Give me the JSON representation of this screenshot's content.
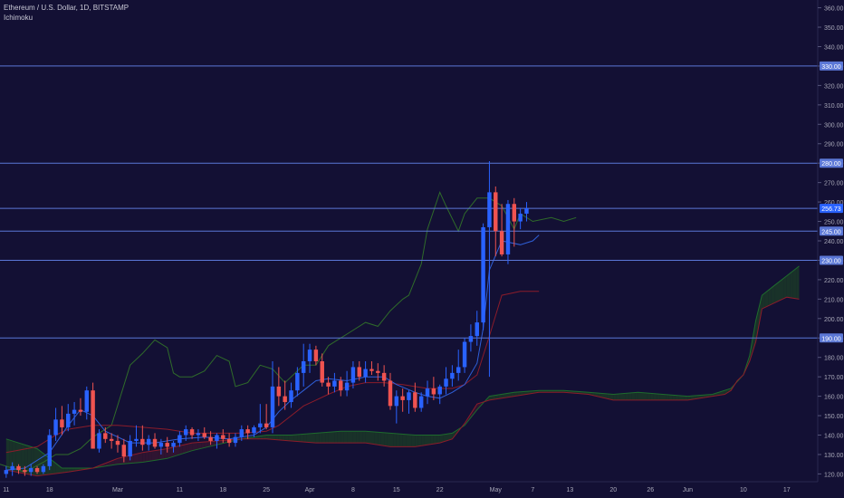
{
  "header": {
    "symbol_title": "Ethereum / U.S. Dollar, 1D, BITSTAMP",
    "indicator": "Ichimoku"
  },
  "colors": {
    "background": "#131034",
    "up_candle": "#2962ff",
    "down_candle": "#ef5350",
    "hline": "#5b77d6",
    "tenkan": "#2f5fd8",
    "kijun": "#8b1c2a",
    "lagging": "#2f6b2a",
    "cloud_bull": "#1c3d25",
    "cloud_bear": "#3a1530",
    "span_a": "#1e6b2d",
    "span_b": "#8b1c2a",
    "axis_text": "#a8a8b8",
    "price_badge": "#2962ff"
  },
  "chart_data": {
    "type": "candlestick",
    "y_axis": {
      "ticks": [
        120,
        130,
        140,
        150,
        160,
        170,
        180,
        190,
        200,
        210,
        220,
        230,
        240,
        250,
        260,
        270,
        280,
        290,
        300,
        310,
        320,
        330,
        340,
        350,
        360
      ],
      "tick_labels": [
        "120.00",
        "130.00",
        "140.00",
        "150.00",
        "160.00",
        "170.00",
        "180.00",
        "190.00",
        "200.00",
        "210.00",
        "220.00",
        "230.00",
        "240.00",
        "250.00",
        "260.00",
        "270.00",
        "280.00",
        "290.00",
        "300.00",
        "310.00",
        "320.00",
        "330.00",
        "340.00",
        "350.00",
        "360.00"
      ],
      "range": [
        116,
        364
      ]
    },
    "x_axis": {
      "labels": [
        {
          "text": "11",
          "day": 0
        },
        {
          "text": "18",
          "day": 7
        },
        {
          "text": "Mar",
          "day": 18
        },
        {
          "text": "11",
          "day": 28
        },
        {
          "text": "18",
          "day": 35
        },
        {
          "text": "25",
          "day": 42
        },
        {
          "text": "Apr",
          "day": 49
        },
        {
          "text": "8",
          "day": 56
        },
        {
          "text": "15",
          "day": 63
        },
        {
          "text": "22",
          "day": 70
        },
        {
          "text": "May",
          "day": 79
        },
        {
          "text": "7",
          "day": 85
        },
        {
          "text": "13",
          "day": 91
        },
        {
          "text": "20",
          "day": 98
        },
        {
          "text": "26",
          "day": 104
        },
        {
          "text": "Jun",
          "day": 110
        },
        {
          "text": "10",
          "day": 119
        },
        {
          "text": "17",
          "day": 126
        }
      ],
      "day_range": [
        -1,
        131
      ]
    },
    "horizontal_lines": [
      {
        "price": 330,
        "label": "330.00"
      },
      {
        "price": 280,
        "label": "280.00"
      },
      {
        "price": 256.73,
        "label": "256.73"
      },
      {
        "price": 245,
        "label": "245.00"
      },
      {
        "price": 230,
        "label": "230.00"
      },
      {
        "price": 190,
        "label": "190.00"
      }
    ],
    "current_price": {
      "price": 256.73,
      "label": "256.73"
    },
    "candles": [
      [
        120,
        124,
        118,
        122
      ],
      [
        122,
        126,
        119,
        124
      ],
      [
        124,
        125,
        120,
        122
      ],
      [
        122,
        124,
        119,
        121
      ],
      [
        121,
        125,
        119,
        123
      ],
      [
        123,
        124,
        120,
        121
      ],
      [
        121,
        125,
        120,
        124
      ],
      [
        124,
        143,
        122,
        140
      ],
      [
        140,
        154,
        137,
        148
      ],
      [
        148,
        155,
        140,
        144
      ],
      [
        144,
        156,
        142,
        151
      ],
      [
        151,
        157,
        145,
        153
      ],
      [
        153,
        159,
        150,
        152
      ],
      [
        152,
        165,
        148,
        163
      ],
      [
        163,
        167,
        133,
        133
      ],
      [
        133,
        143,
        131,
        141
      ],
      [
        141,
        144,
        136,
        138
      ],
      [
        138,
        141,
        133,
        137
      ],
      [
        137,
        140,
        131,
        135
      ],
      [
        135,
        138,
        126,
        129
      ],
      [
        129,
        140,
        127,
        137
      ],
      [
        137,
        145,
        134,
        138
      ],
      [
        138,
        145,
        132,
        135
      ],
      [
        135,
        140,
        132,
        138
      ],
      [
        138,
        141,
        133,
        134
      ],
      [
        134,
        138,
        130,
        136
      ],
      [
        136,
        139,
        131,
        134
      ],
      [
        134,
        137,
        131,
        136
      ],
      [
        136,
        142,
        134,
        140
      ],
      [
        140,
        145,
        137,
        143
      ],
      [
        143,
        144,
        138,
        140
      ],
      [
        140,
        143,
        137,
        141
      ],
      [
        141,
        144,
        138,
        139
      ],
      [
        139,
        142,
        135,
        137
      ],
      [
        137,
        141,
        133,
        140
      ],
      [
        140,
        143,
        136,
        138
      ],
      [
        138,
        141,
        134,
        136
      ],
      [
        136,
        141,
        134,
        139
      ],
      [
        139,
        145,
        137,
        143
      ],
      [
        143,
        145,
        138,
        141
      ],
      [
        141,
        145,
        139,
        144
      ],
      [
        144,
        156,
        141,
        146
      ],
      [
        146,
        156,
        143,
        144
      ],
      [
        144,
        178,
        141,
        165
      ],
      [
        165,
        175,
        155,
        160
      ],
      [
        160,
        168,
        153,
        157
      ],
      [
        157,
        167,
        154,
        163
      ],
      [
        163,
        175,
        160,
        172
      ],
      [
        172,
        187,
        165,
        178
      ],
      [
        178,
        187,
        172,
        184
      ],
      [
        184,
        186,
        176,
        178
      ],
      [
        178,
        182,
        165,
        167
      ],
      [
        167,
        170,
        161,
        165
      ],
      [
        165,
        172,
        162,
        168
      ],
      [
        168,
        170,
        160,
        163
      ],
      [
        163,
        173,
        160,
        167
      ],
      [
        167,
        178,
        164,
        175
      ],
      [
        175,
        178,
        168,
        170
      ],
      [
        170,
        178,
        167,
        174
      ],
      [
        174,
        178,
        171,
        173
      ],
      [
        173,
        177,
        168,
        172
      ],
      [
        172,
        176,
        165,
        168
      ],
      [
        168,
        172,
        153,
        155
      ],
      [
        155,
        163,
        146,
        160
      ],
      [
        160,
        164,
        152,
        158
      ],
      [
        158,
        163,
        151,
        162
      ],
      [
        162,
        167,
        152,
        154
      ],
      [
        154,
        162,
        152,
        160
      ],
      [
        160,
        168,
        156,
        164
      ],
      [
        164,
        170,
        158,
        161
      ],
      [
        161,
        166,
        156,
        165
      ],
      [
        165,
        175,
        161,
        169
      ],
      [
        169,
        176,
        165,
        172
      ],
      [
        172,
        184,
        168,
        175
      ],
      [
        175,
        190,
        172,
        188
      ],
      [
        188,
        197,
        183,
        191
      ],
      [
        191,
        204,
        186,
        198
      ],
      [
        198,
        249,
        194,
        247
      ],
      [
        247,
        281,
        170,
        265
      ],
      [
        265,
        268,
        232,
        245
      ],
      [
        245,
        259,
        232,
        233
      ],
      [
        233,
        261,
        228,
        259
      ],
      [
        259,
        262,
        237,
        250
      ],
      [
        250,
        257,
        246,
        254
      ],
      [
        254,
        260,
        250,
        256.73
      ]
    ],
    "tenkan": [
      [
        0,
        122
      ],
      [
        3,
        123
      ],
      [
        7,
        131
      ],
      [
        10,
        145
      ],
      [
        12,
        153
      ],
      [
        14,
        150
      ],
      [
        16,
        142
      ],
      [
        20,
        136
      ],
      [
        24,
        136
      ],
      [
        28,
        138
      ],
      [
        32,
        139
      ],
      [
        36,
        138
      ],
      [
        40,
        140
      ],
      [
        42,
        144
      ],
      [
        44,
        152
      ],
      [
        46,
        158
      ],
      [
        48,
        163
      ],
      [
        50,
        168
      ],
      [
        52,
        169
      ],
      [
        55,
        168
      ],
      [
        58,
        170
      ],
      [
        61,
        170
      ],
      [
        63,
        166
      ],
      [
        66,
        162
      ],
      [
        68,
        160
      ],
      [
        70,
        159
      ],
      [
        72,
        162
      ],
      [
        74,
        166
      ],
      [
        76,
        177
      ],
      [
        77,
        195
      ],
      [
        78,
        225
      ],
      [
        80,
        240
      ],
      [
        83,
        238
      ],
      [
        85,
        240
      ],
      [
        86,
        243
      ]
    ],
    "kijun": [
      [
        0,
        131
      ],
      [
        5,
        134
      ],
      [
        8,
        140
      ],
      [
        10,
        143
      ],
      [
        14,
        145
      ],
      [
        18,
        145
      ],
      [
        22,
        144
      ],
      [
        26,
        143
      ],
      [
        30,
        141
      ],
      [
        34,
        141
      ],
      [
        38,
        141
      ],
      [
        42,
        142
      ],
      [
        44,
        145
      ],
      [
        46,
        150
      ],
      [
        48,
        155
      ],
      [
        50,
        158
      ],
      [
        52,
        161
      ],
      [
        55,
        165
      ],
      [
        58,
        167
      ],
      [
        61,
        167
      ],
      [
        64,
        166
      ],
      [
        66,
        165
      ],
      [
        68,
        164
      ],
      [
        70,
        164
      ],
      [
        72,
        164
      ],
      [
        74,
        166
      ],
      [
        76,
        171
      ],
      [
        78,
        191
      ],
      [
        80,
        212
      ],
      [
        83,
        214
      ],
      [
        86,
        214
      ]
    ],
    "lagging": [
      [
        -1,
        125
      ],
      [
        3,
        121
      ],
      [
        6,
        126
      ],
      [
        8,
        130
      ],
      [
        10,
        130
      ],
      [
        12,
        133
      ],
      [
        14,
        139
      ],
      [
        17,
        145
      ],
      [
        20,
        176
      ],
      [
        22,
        182
      ],
      [
        24,
        189
      ],
      [
        26,
        185
      ],
      [
        27,
        172
      ],
      [
        28,
        170
      ],
      [
        30,
        170
      ],
      [
        32,
        173
      ],
      [
        34,
        181
      ],
      [
        36,
        178
      ],
      [
        37,
        165
      ],
      [
        39,
        167
      ],
      [
        41,
        176
      ],
      [
        43,
        174
      ],
      [
        45,
        167
      ],
      [
        48,
        176
      ],
      [
        50,
        176
      ],
      [
        52,
        186
      ],
      [
        55,
        192
      ],
      [
        58,
        198
      ],
      [
        60,
        196
      ],
      [
        62,
        204
      ],
      [
        64,
        210
      ],
      [
        65,
        212
      ],
      [
        67,
        228
      ],
      [
        68,
        246
      ],
      [
        70,
        265
      ],
      [
        71,
        258
      ],
      [
        73,
        245
      ],
      [
        74,
        254
      ],
      [
        76,
        262
      ],
      [
        78,
        262
      ],
      [
        80,
        258
      ],
      [
        82,
        246
      ],
      [
        83,
        254
      ],
      [
        85,
        250
      ],
      [
        88,
        252
      ],
      [
        90,
        250
      ],
      [
        92,
        252
      ]
    ],
    "span_a": [
      [
        0,
        138
      ],
      [
        5,
        133
      ],
      [
        9,
        123
      ],
      [
        14,
        123
      ],
      [
        18,
        125
      ],
      [
        22,
        126
      ],
      [
        26,
        128
      ],
      [
        30,
        132
      ],
      [
        34,
        135
      ],
      [
        38,
        138
      ],
      [
        42,
        140
      ],
      [
        46,
        140
      ],
      [
        50,
        141
      ],
      [
        54,
        142
      ],
      [
        58,
        142
      ],
      [
        62,
        141
      ],
      [
        66,
        140
      ],
      [
        70,
        140
      ],
      [
        72,
        141
      ],
      [
        74,
        145
      ],
      [
        76,
        153
      ],
      [
        78,
        160
      ],
      [
        82,
        162
      ],
      [
        86,
        163
      ],
      [
        90,
        163
      ],
      [
        94,
        162
      ],
      [
        98,
        161
      ],
      [
        102,
        162
      ],
      [
        106,
        161
      ],
      [
        110,
        160
      ],
      [
        114,
        161
      ],
      [
        117,
        164
      ],
      [
        119,
        171
      ],
      [
        120,
        181
      ],
      [
        121,
        199
      ],
      [
        122,
        212
      ],
      [
        124,
        217
      ],
      [
        126,
        222
      ],
      [
        128,
        227
      ]
    ],
    "span_b": [
      [
        0,
        122
      ],
      [
        5,
        119
      ],
      [
        10,
        121
      ],
      [
        14,
        123
      ],
      [
        18,
        128
      ],
      [
        22,
        131
      ],
      [
        26,
        133
      ],
      [
        30,
        136
      ],
      [
        34,
        137
      ],
      [
        38,
        138
      ],
      [
        42,
        138
      ],
      [
        46,
        137
      ],
      [
        50,
        136
      ],
      [
        54,
        136
      ],
      [
        58,
        136
      ],
      [
        62,
        134
      ],
      [
        66,
        134
      ],
      [
        70,
        136
      ],
      [
        72,
        138
      ],
      [
        74,
        146
      ],
      [
        76,
        156
      ],
      [
        78,
        158
      ],
      [
        82,
        160
      ],
      [
        86,
        162
      ],
      [
        90,
        162
      ],
      [
        94,
        161
      ],
      [
        98,
        158
      ],
      [
        102,
        158
      ],
      [
        106,
        158
      ],
      [
        110,
        158
      ],
      [
        114,
        160
      ],
      [
        116,
        161
      ],
      [
        117,
        163
      ],
      [
        118,
        168
      ],
      [
        119,
        171
      ],
      [
        120,
        178
      ],
      [
        121,
        188
      ],
      [
        122,
        205
      ],
      [
        124,
        208
      ],
      [
        126,
        211
      ],
      [
        128,
        210
      ]
    ]
  }
}
